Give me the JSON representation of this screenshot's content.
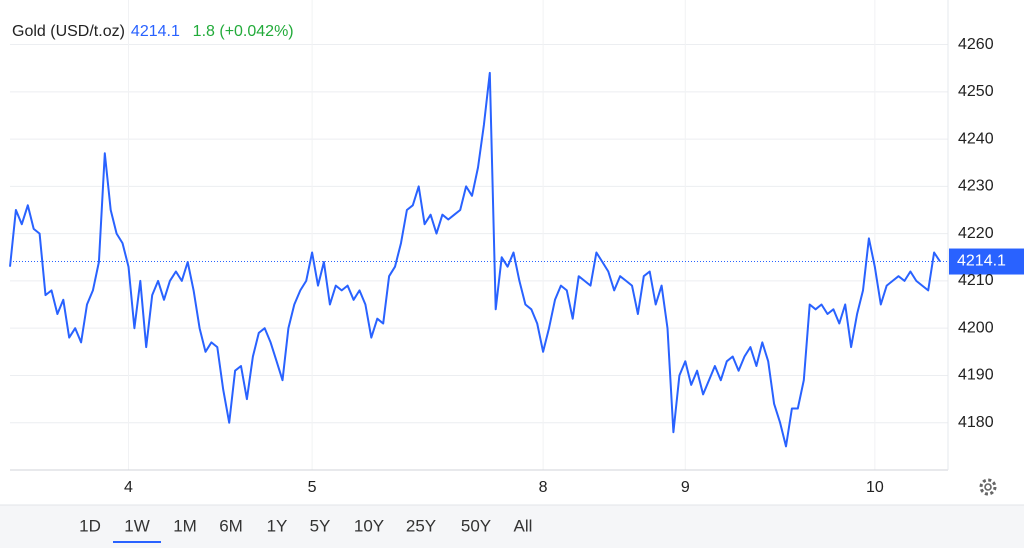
{
  "chart_data": {
    "type": "line",
    "title": "Gold (USD/t.oz)",
    "last_value": 4214.1,
    "change": "1.8 (+0.042%)",
    "series": [
      {
        "name": "Gold",
        "color": "#2962ff",
        "values": [
          4213,
          4225,
          4222,
          4226,
          4221,
          4220,
          4207,
          4208,
          4203,
          4206,
          4198,
          4200,
          4197,
          4205,
          4208,
          4214,
          4237,
          4225,
          4220,
          4218,
          4213,
          4200,
          4210,
          4196,
          4207,
          4210,
          4206,
          4210,
          4212,
          4210,
          4214,
          4208,
          4200,
          4195,
          4197,
          4196,
          4187,
          4180,
          4191,
          4192,
          4185,
          4194,
          4199,
          4200,
          4197,
          4193,
          4189,
          4200,
          4205,
          4208,
          4210,
          4216,
          4209,
          4214,
          4205,
          4209,
          4208,
          4209,
          4206,
          4208,
          4205,
          4198,
          4202,
          4201,
          4211,
          4213,
          4218,
          4225,
          4226,
          4230,
          4222,
          4224,
          4220,
          4224,
          4223,
          4224,
          4225,
          4230,
          4228,
          4234,
          4243,
          4254,
          4204,
          4215,
          4213,
          4216,
          4210,
          4205,
          4204,
          4201,
          4195,
          4200,
          4206,
          4209,
          4208,
          4202,
          4211,
          4210,
          4209,
          4216,
          4214,
          4212,
          4208,
          4211,
          4210,
          4209,
          4203,
          4211,
          4212,
          4205,
          4209,
          4200,
          4178,
          4190,
          4193,
          4188,
          4191,
          4186,
          4189,
          4192,
          4189,
          4193,
          4194,
          4191,
          4194,
          4196,
          4192,
          4197,
          4193,
          4184,
          4180,
          4175,
          4183,
          4183,
          4189,
          4205,
          4204,
          4205,
          4203,
          4204,
          4201,
          4205,
          4196,
          4203,
          4208,
          4219,
          4213,
          4205,
          4209,
          4210,
          4211,
          4210,
          4212,
          4210,
          4209,
          4208,
          4216,
          4214.1
        ]
      }
    ],
    "xlim": [
      0,
      157
    ],
    "xticks": [
      {
        "value": 20,
        "label": "4"
      },
      {
        "value": 51,
        "label": "5"
      },
      {
        "value": 90,
        "label": "8"
      },
      {
        "value": 114,
        "label": "9"
      },
      {
        "value": 146,
        "label": "10"
      }
    ],
    "ylim": [
      4170,
      4269
    ],
    "yticks": [
      4180,
      4190,
      4200,
      4210,
      4220,
      4230,
      4240,
      4250,
      4260
    ],
    "grid": true,
    "ranges": [
      "1D",
      "1W",
      "1M",
      "6M",
      "1Y",
      "5Y",
      "10Y",
      "25Y",
      "50Y",
      "All"
    ],
    "selected_range": 1
  }
}
